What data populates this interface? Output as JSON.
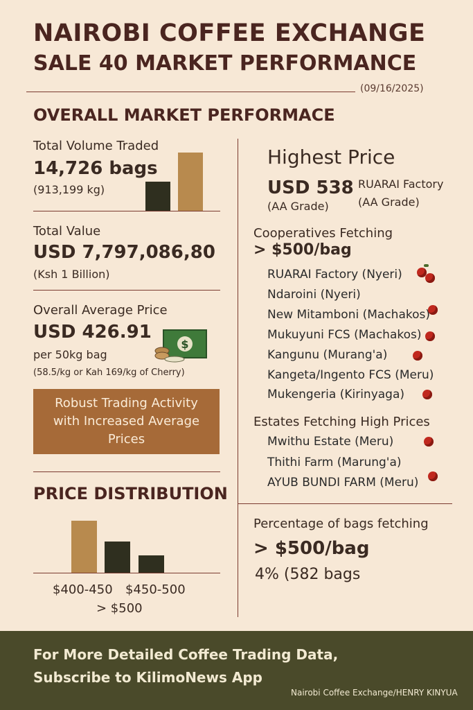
{
  "header": {
    "title": "NAIROBI COFFEE EXCHANGE",
    "subtitle": "SALE 40 MARKET PERFORMANCE",
    "date": "(09/16/2025)"
  },
  "overall": {
    "section_title": "OVERALL MARKET PERFORMACE",
    "volume": {
      "label": "Total Volume Traded",
      "value": "14,726 bags",
      "sub": "(913,199 kg)"
    },
    "value": {
      "label": "Total Value",
      "value": "USD 7,797,086,80",
      "sub": "(Ksh 1 Billion)"
    },
    "average": {
      "label": "Overall Average Price",
      "value": "USD 426.91",
      "sub": "per 50kg bag",
      "note": "(58.5/kg or Kah 169/kg of Cherry)"
    },
    "money_icon": "cash-icon",
    "callout": "Robust Trading Activity with Increased Average Prices"
  },
  "distribution": {
    "section_title": "PRICE DISTRIBUTION",
    "labels": [
      "$400-450",
      "$450-500",
      "> $500"
    ]
  },
  "highest": {
    "title": "Highest Price",
    "value": "USD 538",
    "grade": "(AA Grade)",
    "factory": "RUARAI Factory",
    "factory_grade": "(AA Grade)"
  },
  "cooperatives": {
    "title": "Cooperatives Fetching",
    "threshold": "> $500/bag",
    "items": [
      "RUARAI Factory (Nyeri)",
      "Ndaroini (Nyeri)",
      "New Mitamboni (Machakos)",
      "Mukuyuni FCS (Machakos)",
      "Kangunu (Murang'a)",
      "Kangeta/Ingento FCS (Meru)",
      "Mukengeria (Kirinyaga)"
    ]
  },
  "estates": {
    "title": "Estates Fetching High Prices",
    "items": [
      "Mwithu Estate (Meru)",
      "Thithi Farm (Marung'a)",
      "AYUB BUNDI FARM (Meru)"
    ]
  },
  "percentage": {
    "title": "Percentage of bags fetching",
    "threshold": "> $500/bag",
    "value": "4% (582 bags"
  },
  "footer": {
    "line1": "For More Detailed Coffee Trading Data,",
    "line2": "Subscribe to KilimoNews App",
    "credit": "Nairobi Coffee Exchange/HENRY KINYUA"
  },
  "colors": {
    "background": "#f7e8d6",
    "accent": "#b88a4e",
    "dark": "#2f2f1f",
    "footer": "#4a4a2a",
    "callout": "#a66a38"
  }
}
